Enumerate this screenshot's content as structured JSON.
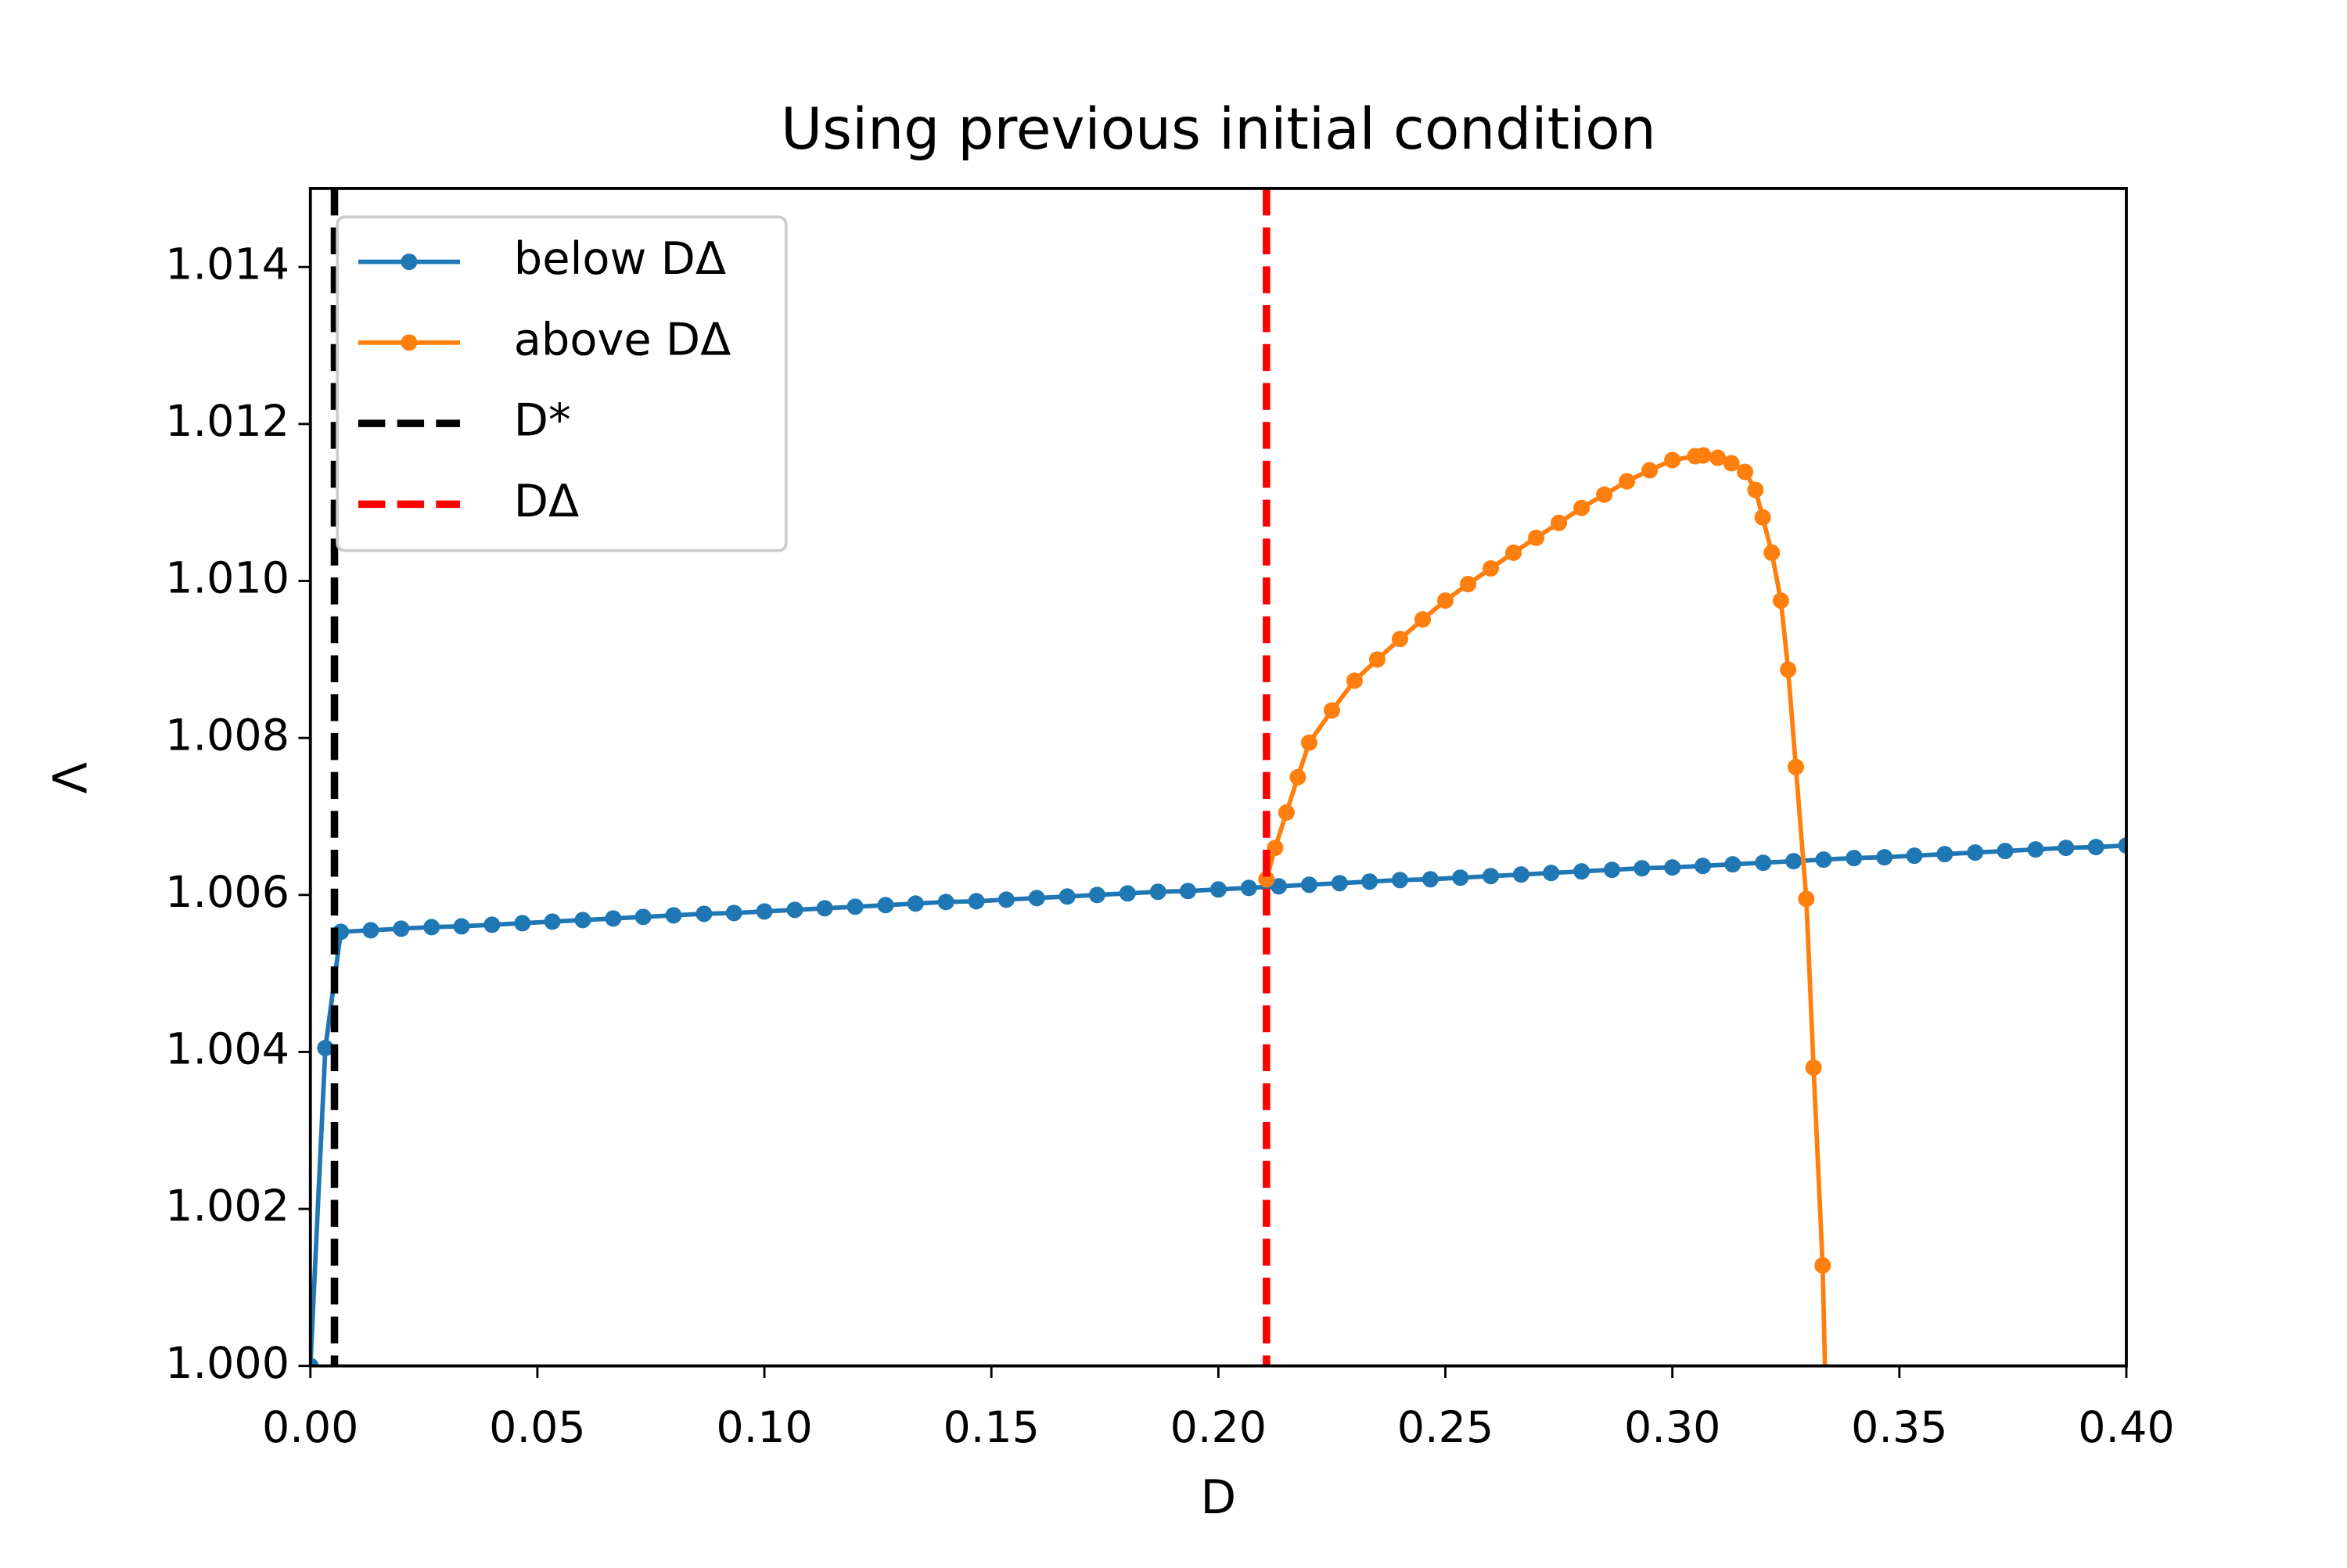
{
  "chart_data": {
    "type": "line",
    "title": "Using previous initial condition",
    "xlabel": "D",
    "ylabel": "Λ",
    "xlim": [
      0,
      0.4
    ],
    "ylim": [
      1.0,
      1.015
    ],
    "xticks": [
      {
        "value": 0,
        "label": "0.00"
      },
      {
        "value": 0.05,
        "label": "0.05"
      },
      {
        "value": 0.1,
        "label": "0.10"
      },
      {
        "value": 0.15,
        "label": "0.15"
      },
      {
        "value": 0.2,
        "label": "0.20"
      },
      {
        "value": 0.25,
        "label": "0.25"
      },
      {
        "value": 0.3,
        "label": "0.30"
      },
      {
        "value": 0.35,
        "label": "0.35"
      },
      {
        "value": 0.4,
        "label": "0.40"
      }
    ],
    "yticks": [
      {
        "value": 1.0,
        "label": "1.000"
      },
      {
        "value": 1.002,
        "label": "1.002"
      },
      {
        "value": 1.004,
        "label": "1.004"
      },
      {
        "value": 1.006,
        "label": "1.006"
      },
      {
        "value": 1.008,
        "label": "1.008"
      },
      {
        "value": 1.01,
        "label": "1.010"
      },
      {
        "value": 1.012,
        "label": "1.012"
      },
      {
        "value": 1.014,
        "label": "1.014"
      }
    ],
    "legend": "upper left",
    "series": [
      {
        "name": "below DΔ",
        "color": "#1f77b4",
        "x": [
          0,
          0.0033,
          0.0067,
          0.0133,
          0.02,
          0.0267,
          0.0333,
          0.04,
          0.0467,
          0.0533,
          0.06,
          0.0667,
          0.0733,
          0.08,
          0.0867,
          0.0933,
          0.1,
          0.1067,
          0.1133,
          0.12,
          0.1267,
          0.1333,
          0.14,
          0.1467,
          0.1533,
          0.16,
          0.1667,
          0.1733,
          0.18,
          0.1867,
          0.1933,
          0.2,
          0.2067,
          0.2133,
          0.22,
          0.2267,
          0.2333,
          0.24,
          0.2467,
          0.2533,
          0.26,
          0.2667,
          0.2733,
          0.28,
          0.2867,
          0.2933,
          0.3,
          0.3067,
          0.3133,
          0.32,
          0.3267,
          0.3333,
          0.34,
          0.3467,
          0.3533,
          0.36,
          0.3667,
          0.3733,
          0.38,
          0.3867,
          0.3933,
          0.4
        ],
        "values": [
          1.0,
          1.00405,
          1.00553,
          1.00555,
          1.00557,
          1.00559,
          1.0056,
          1.00562,
          1.00564,
          1.00566,
          1.00568,
          1.0057,
          1.00572,
          1.00574,
          1.00576,
          1.00577,
          1.00579,
          1.00581,
          1.00583,
          1.00585,
          1.00587,
          1.00589,
          1.00591,
          1.00592,
          1.00594,
          1.00596,
          1.00598,
          1.006,
          1.00602,
          1.00604,
          1.00605,
          1.00607,
          1.00609,
          1.00611,
          1.00613,
          1.00615,
          1.00617,
          1.00619,
          1.0062,
          1.00622,
          1.00624,
          1.00626,
          1.00628,
          1.0063,
          1.00632,
          1.00634,
          1.00635,
          1.00637,
          1.00639,
          1.00641,
          1.00643,
          1.00645,
          1.00647,
          1.00648,
          1.0065,
          1.00652,
          1.00654,
          1.00656,
          1.00658,
          1.0066,
          1.00661,
          1.00663
        ]
      },
      {
        "name": "above DΔ",
        "color": "#ff7f0e",
        "x": [
          0.2106,
          0.2125,
          0.215,
          0.2175,
          0.22,
          0.225,
          0.23,
          0.235,
          0.24,
          0.245,
          0.25,
          0.255,
          0.26,
          0.265,
          0.27,
          0.275,
          0.28,
          0.285,
          0.29,
          0.295,
          0.3,
          0.305,
          0.3068,
          0.31,
          0.313,
          0.316,
          0.3183,
          0.3199,
          0.3219,
          0.3239,
          0.3255,
          0.3272,
          0.3295,
          0.3311,
          0.3331,
          0.334
        ],
        "values": [
          1.0062,
          1.0066,
          1.00705,
          1.0075,
          1.00794,
          1.00835,
          1.00873,
          1.009,
          1.00926,
          1.00951,
          1.00975,
          1.00996,
          1.01016,
          1.01036,
          1.01055,
          1.01074,
          1.01093,
          1.0111,
          1.01127,
          1.01141,
          1.01154,
          1.01159,
          1.0116,
          1.01157,
          1.0115,
          1.01139,
          1.01116,
          1.01081,
          1.01036,
          1.00975,
          1.00887,
          1.00763,
          1.00595,
          1.0038,
          1.00128,
          0.999
        ]
      }
    ],
    "vlines": [
      {
        "name": "D*",
        "color": "#000000",
        "x": 0.0053
      },
      {
        "name": "DΔ",
        "color": "#ff0000",
        "x": 0.2106
      }
    ]
  }
}
